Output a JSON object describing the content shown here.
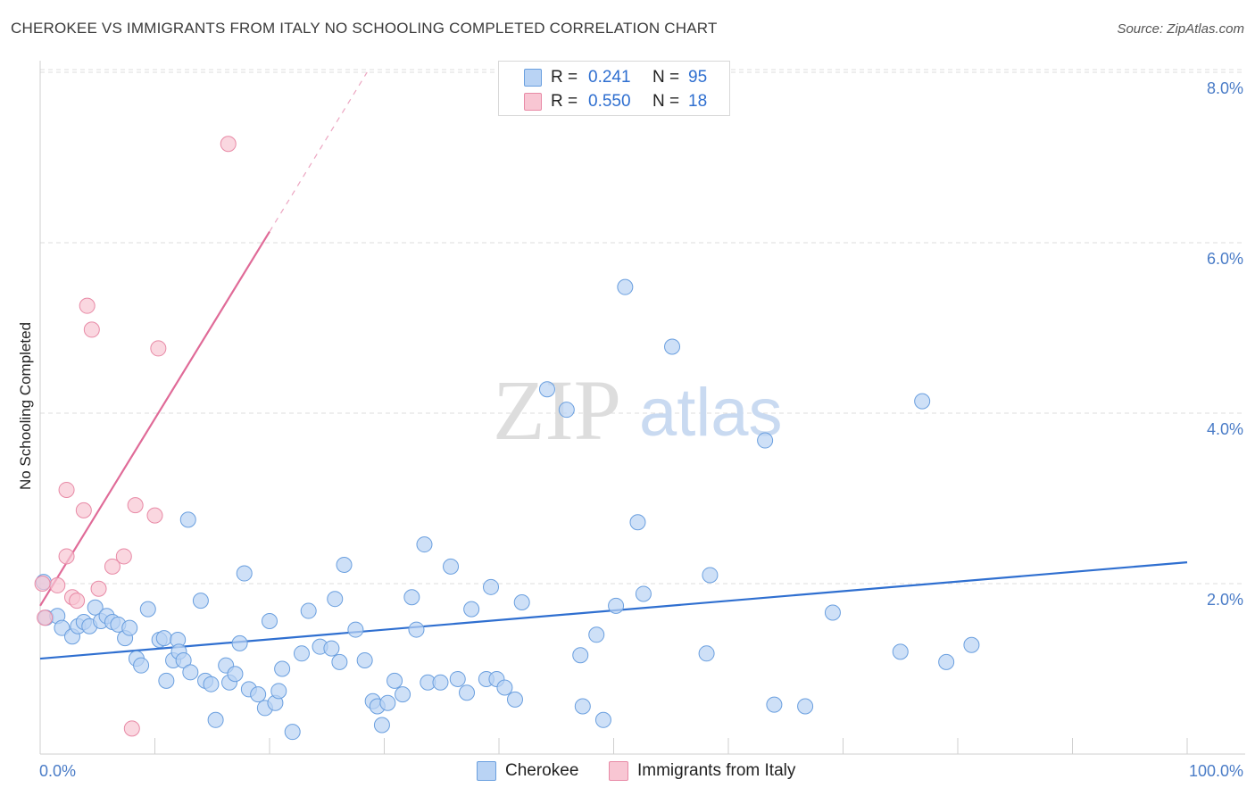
{
  "header": {
    "title": "CHEROKEE VS IMMIGRANTS FROM ITALY NO SCHOOLING COMPLETED CORRELATION CHART",
    "source": "Source: ZipAtlas.com"
  },
  "colors": {
    "cherokee_fill": "#b9d3f4",
    "cherokee_stroke": "#6a9fdf",
    "cherokee_line": "#2f6fd0",
    "italy_fill": "#f8c6d3",
    "italy_stroke": "#e88aa6",
    "italy_line": "#e06b98",
    "grid": "#dcdcdc",
    "tick_text": "#4a7cc7"
  },
  "legend": {
    "rows": [
      {
        "swatch": "cherokee",
        "r_label": "R = ",
        "r_value": "0.241",
        "n_label": "N = ",
        "n_value": "95"
      },
      {
        "swatch": "italy",
        "r_label": "R = ",
        "r_value": "0.550",
        "n_label": "N = ",
        "n_value": "18"
      }
    ]
  },
  "bottom_legend": {
    "cherokee": "Cherokee",
    "italy": "Immigrants from Italy"
  },
  "watermark": {
    "zip": "ZIP",
    "atlas": "atlas"
  },
  "chart_data": {
    "type": "scatter",
    "title": "CHEROKEE VS IMMIGRANTS FROM ITALY NO SCHOOLING COMPLETED CORRELATION CHART",
    "xlabel": "",
    "ylabel": "No Schooling Completed",
    "xlim": [
      0,
      100
    ],
    "ylim": [
      0,
      8.2
    ],
    "x_tick_labels": {
      "left": "0.0%",
      "right": "100.0%"
    },
    "y_ticks": [
      {
        "value": 2,
        "label": "2.0%"
      },
      {
        "value": 4,
        "label": "4.0%"
      },
      {
        "value": 6,
        "label": "6.0%"
      },
      {
        "value": 8,
        "label": "8.0%"
      }
    ],
    "grid": true,
    "series": [
      {
        "name": "Cherokee",
        "r": 0.241,
        "n": 95,
        "trend": {
          "x0": 0,
          "y0": 1.12,
          "x1": 100,
          "y1": 2.25
        },
        "points": [
          [
            0.3,
            2.02
          ],
          [
            0.5,
            1.6
          ],
          [
            1.5,
            1.62
          ],
          [
            1.9,
            1.48
          ],
          [
            2.8,
            1.38
          ],
          [
            3.3,
            1.5
          ],
          [
            3.8,
            1.55
          ],
          [
            4.3,
            1.5
          ],
          [
            4.8,
            1.72
          ],
          [
            5.3,
            1.56
          ],
          [
            5.8,
            1.62
          ],
          [
            6.3,
            1.55
          ],
          [
            6.8,
            1.52
          ],
          [
            7.4,
            1.36
          ],
          [
            7.8,
            1.48
          ],
          [
            8.4,
            1.12
          ],
          [
            8.8,
            1.04
          ],
          [
            9.4,
            1.7
          ],
          [
            10.4,
            1.34
          ],
          [
            10.8,
            1.36
          ],
          [
            11.0,
            0.86
          ],
          [
            11.6,
            1.1
          ],
          [
            12.0,
            1.34
          ],
          [
            12.1,
            1.2
          ],
          [
            12.5,
            1.1
          ],
          [
            12.9,
            2.75
          ],
          [
            13.1,
            0.96
          ],
          [
            14.0,
            1.8
          ],
          [
            14.4,
            0.86
          ],
          [
            14.9,
            0.82
          ],
          [
            15.3,
            0.4
          ],
          [
            16.2,
            1.04
          ],
          [
            16.5,
            0.84
          ],
          [
            17.0,
            0.94
          ],
          [
            17.4,
            1.3
          ],
          [
            17.8,
            2.12
          ],
          [
            18.2,
            0.76
          ],
          [
            19.0,
            0.7
          ],
          [
            19.6,
            0.54
          ],
          [
            20.0,
            1.56
          ],
          [
            20.5,
            0.6
          ],
          [
            20.8,
            0.74
          ],
          [
            21.1,
            1.0
          ],
          [
            22.0,
            0.26
          ],
          [
            22.8,
            1.18
          ],
          [
            23.4,
            1.68
          ],
          [
            24.4,
            1.26
          ],
          [
            25.4,
            1.24
          ],
          [
            25.7,
            1.82
          ],
          [
            26.1,
            1.08
          ],
          [
            26.5,
            2.22
          ],
          [
            27.5,
            1.46
          ],
          [
            28.3,
            1.1
          ],
          [
            29.0,
            0.62
          ],
          [
            29.4,
            0.56
          ],
          [
            29.8,
            0.34
          ],
          [
            30.3,
            0.6
          ],
          [
            30.9,
            0.86
          ],
          [
            31.6,
            0.7
          ],
          [
            32.4,
            1.84
          ],
          [
            32.8,
            1.46
          ],
          [
            33.5,
            2.46
          ],
          [
            33.8,
            0.84
          ],
          [
            34.9,
            0.84
          ],
          [
            35.8,
            2.2
          ],
          [
            36.4,
            0.88
          ],
          [
            37.2,
            0.72
          ],
          [
            37.6,
            1.7
          ],
          [
            38.9,
            0.88
          ],
          [
            39.3,
            1.96
          ],
          [
            39.8,
            0.88
          ],
          [
            40.5,
            0.78
          ],
          [
            41.4,
            0.64
          ],
          [
            42.0,
            1.78
          ],
          [
            44.2,
            4.28
          ],
          [
            45.9,
            4.04
          ],
          [
            47.1,
            1.16
          ],
          [
            47.3,
            0.56
          ],
          [
            49.1,
            0.4
          ],
          [
            50.2,
            1.74
          ],
          [
            51.0,
            5.48
          ],
          [
            52.1,
            2.72
          ],
          [
            52.6,
            1.88
          ],
          [
            55.1,
            4.78
          ],
          [
            58.1,
            1.18
          ],
          [
            58.4,
            2.1
          ],
          [
            63.2,
            3.68
          ],
          [
            64.0,
            0.58
          ],
          [
            66.7,
            0.56
          ],
          [
            69.1,
            1.66
          ],
          [
            75.0,
            1.2
          ],
          [
            76.9,
            4.14
          ],
          [
            79.0,
            1.08
          ],
          [
            81.2,
            1.28
          ],
          [
            48.5,
            1.4
          ]
        ]
      },
      {
        "name": "Immigrants from Italy",
        "r": 0.55,
        "n": 18,
        "trend": {
          "x0": 0,
          "y0": 1.74,
          "x1": 20.0,
          "y1": 6.13,
          "dash_to_x": 28.5,
          "dash_to_y": 8.0
        },
        "points": [
          [
            0.4,
            1.6
          ],
          [
            1.5,
            1.98
          ],
          [
            2.3,
            2.32
          ],
          [
            2.3,
            3.1
          ],
          [
            2.8,
            1.84
          ],
          [
            3.2,
            1.8
          ],
          [
            3.8,
            2.86
          ],
          [
            4.1,
            5.26
          ],
          [
            4.5,
            4.98
          ],
          [
            5.1,
            1.94
          ],
          [
            6.3,
            2.2
          ],
          [
            7.3,
            2.32
          ],
          [
            8.0,
            0.3
          ],
          [
            8.3,
            2.92
          ],
          [
            10.0,
            2.8
          ],
          [
            10.3,
            4.76
          ],
          [
            16.4,
            7.16
          ],
          [
            0.2,
            2.0
          ]
        ]
      }
    ]
  }
}
